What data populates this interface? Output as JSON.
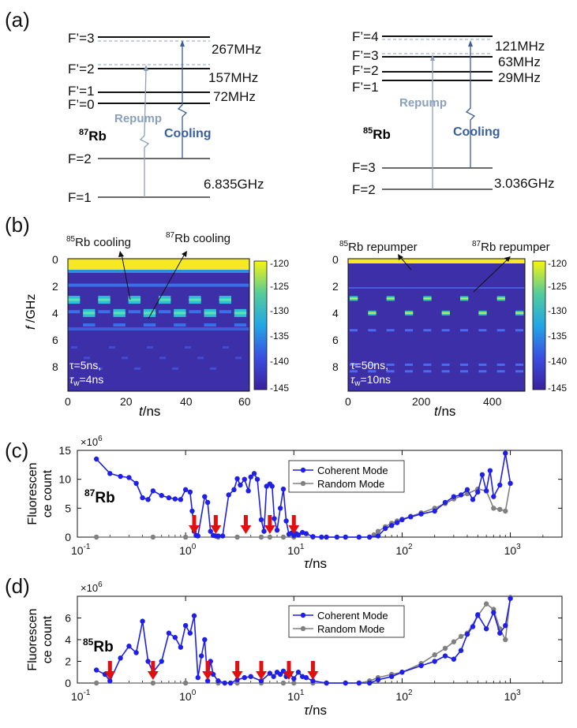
{
  "panel_a": {
    "letter": "(a)",
    "rb87": {
      "excited_levels": [
        "F’=3",
        "F’=2",
        "F’=1",
        "F’=0"
      ],
      "excited_splittings": [
        "267MHz",
        "157MHz",
        "72MHz"
      ],
      "ground_levels": [
        "F=2",
        "F=1"
      ],
      "ground_splitting": "6.835GHz",
      "isotope_mass": "87",
      "isotope_symbol": "Rb",
      "repump_label": "Repump",
      "cooling_label": "Cooling"
    },
    "rb85": {
      "excited_levels": [
        "F’=4",
        "F’=3",
        "F’=2",
        "F’=1"
      ],
      "excited_splittings": [
        "121MHz",
        "63MHz",
        "29MHz"
      ],
      "ground_levels": [
        "F=3",
        "F=2"
      ],
      "ground_splitting": "3.036GHz",
      "isotope_mass": "85",
      "isotope_symbol": "Rb",
      "repump_label": "Repump",
      "cooling_label": "Cooling"
    },
    "colors": {
      "repump": "#8aa0bb",
      "cooling": "#3a5f9a"
    }
  },
  "panel_b": {
    "letter": "(b)",
    "ylabel_var": "f",
    "ylabel_unit": " /GHz",
    "xlabel_var": "t",
    "xlabel_unit": "/ns",
    "left": {
      "anno1_mass": "85",
      "anno1_text": "Rb cooling",
      "anno2_mass": "87",
      "anno2_text": "Rb cooling",
      "param1": "τ=5ns,",
      "param2_sym": "τ",
      "param2_sub": "w",
      "param2_val": "=4ns",
      "x_ticks": [
        "0",
        "20",
        "40",
        "60"
      ]
    },
    "right": {
      "anno1_mass": "85",
      "anno1_text": "Rb repumper",
      "anno2_mass": "87",
      "anno2_text": "Rb repumper",
      "param1": "τ=50ns,",
      "param2_sym": "τ",
      "param2_sub": "w",
      "param2_val": "=10ns",
      "x_ticks": [
        "0",
        "200",
        "400"
      ]
    },
    "y_ticks": [
      "0",
      "2",
      "4",
      "6",
      "8"
    ],
    "colorbar_ticks": [
      "-120",
      "-125",
      "-130",
      "-135",
      "-140",
      "-145"
    ]
  },
  "chart_data": [
    {
      "type": "line",
      "panel": "(c)",
      "xscale": "log",
      "xlim": [
        0.1,
        3000
      ],
      "ylim": [
        0,
        15
      ],
      "ylabel_line1": "Fluorescen",
      "ylabel_line2": "ce count",
      "xlabel_var": "τ",
      "xlabel_unit": "/ns",
      "exponent_base": "×10",
      "exponent_power": "6",
      "isotope_mass": "87",
      "isotope_symbol": "Rb",
      "y_ticks": [
        "0",
        "5",
        "10",
        "15"
      ],
      "x_tick_labels": [
        [
          "10",
          "-1"
        ],
        [
          "10",
          "0"
        ],
        [
          "10",
          "1"
        ],
        [
          "10",
          "2"
        ],
        [
          "10",
          "3"
        ]
      ],
      "arrows_at": [
        1.2,
        1.9,
        3.6,
        6.0,
        10.0
      ],
      "series": [
        {
          "name": "Coherent Mode",
          "color": "#1f1fe6",
          "x": [
            0.15,
            0.2,
            0.25,
            0.3,
            0.35,
            0.4,
            0.45,
            0.5,
            0.6,
            0.7,
            0.8,
            0.9,
            1.0,
            1.1,
            1.15,
            1.2,
            1.25,
            1.3,
            1.5,
            1.6,
            1.7,
            1.8,
            1.9,
            2.0,
            2.2,
            2.5,
            2.8,
            3.0,
            3.2,
            3.5,
            3.8,
            4.0,
            4.3,
            4.6,
            5.0,
            5.3,
            5.6,
            6.0,
            6.3,
            6.6,
            7.0,
            7.5,
            8.0,
            8.5,
            9.0,
            9.5,
            10,
            10.5,
            11,
            12,
            13,
            15,
            18,
            20,
            25,
            30,
            40,
            50,
            60,
            70,
            80,
            90,
            100,
            120,
            150,
            200,
            250,
            300,
            350,
            400,
            450,
            500,
            550,
            600,
            650,
            700,
            800,
            900,
            1000
          ],
          "values": [
            13.5,
            11.0,
            10.5,
            10.3,
            9.3,
            6.8,
            6.5,
            8.0,
            7.2,
            6.8,
            6.6,
            6.5,
            8.2,
            7.8,
            4.5,
            1.0,
            0.3,
            0.2,
            7.0,
            6.0,
            1.0,
            0.3,
            0.2,
            0.2,
            0.2,
            7.3,
            8.2,
            10.1,
            9.0,
            10.0,
            8.0,
            10.4,
            11.0,
            10.0,
            3.0,
            1.0,
            8.8,
            9.2,
            8.8,
            3.2,
            1.2,
            5.0,
            8.3,
            2.8,
            0.5,
            0.7,
            0.3,
            0.6,
            0.4,
            0.8,
            0.6,
            0.1,
            0.0,
            0.0,
            0.0,
            0.0,
            0.0,
            0.0,
            0.2,
            1.5,
            2.0,
            2.5,
            3.0,
            3.5,
            4.0,
            4.5,
            6.0,
            7.0,
            7.3,
            8.2,
            6.5,
            7.8,
            10.8,
            8.0,
            11.5,
            7.0,
            9.0,
            14.5,
            9.3
          ]
        },
        {
          "name": "Random Mode",
          "color": "#808080",
          "x": [
            0.15,
            0.5,
            1.0,
            2.0,
            3.0,
            5.0,
            6.0,
            8.0,
            10,
            15,
            20,
            30,
            40,
            50,
            55,
            60,
            70,
            80,
            90,
            100,
            120,
            150,
            200,
            250,
            300,
            400,
            500,
            600,
            700,
            800,
            900,
            1000
          ],
          "values": [
            0.0,
            0.0,
            0.0,
            0.0,
            0.0,
            0.0,
            0.0,
            0.0,
            0.0,
            0.0,
            0.0,
            0.0,
            0.0,
            0.0,
            0.4,
            1.0,
            1.8,
            2.4,
            2.8,
            3.1,
            3.6,
            4.2,
            5.0,
            5.8,
            6.6,
            7.5,
            8.3,
            8.0,
            5.0,
            4.8,
            4.5,
            9.3
          ]
        }
      ]
    },
    {
      "type": "line",
      "panel": "(d)",
      "xscale": "log",
      "xlim": [
        0.1,
        3000
      ],
      "ylim": [
        0,
        8
      ],
      "ylabel_line1": "Fluorescen",
      "ylabel_line2": "ce count",
      "xlabel_var": "τ",
      "xlabel_unit": "/ns",
      "exponent_base": "×10",
      "exponent_power": "6",
      "isotope_mass": "85",
      "isotope_symbol": "Rb",
      "y_ticks": [
        "0",
        "2",
        "4",
        "6"
      ],
      "x_tick_labels": [
        [
          "10",
          "-1"
        ],
        [
          "10",
          "0"
        ],
        [
          "10",
          "1"
        ],
        [
          "10",
          "2"
        ],
        [
          "10",
          "3"
        ]
      ],
      "arrows_at": [
        0.2,
        0.5,
        1.6,
        3.0,
        5.0,
        9.0,
        15.0
      ],
      "series": [
        {
          "name": "Coherent Mode",
          "color": "#1f1fe6",
          "x": [
            0.15,
            0.18,
            0.2,
            0.25,
            0.3,
            0.35,
            0.4,
            0.45,
            0.5,
            0.6,
            0.7,
            0.8,
            0.9,
            1.0,
            1.1,
            1.2,
            1.3,
            1.4,
            1.5,
            1.6,
            1.7,
            1.8,
            2.0,
            2.3,
            2.6,
            3.0,
            3.5,
            4.0,
            5.0,
            6.0,
            6.5,
            7.0,
            7.5,
            8.0,
            8.5,
            9.0,
            10,
            11,
            12,
            13,
            15,
            20,
            30,
            40,
            50,
            60,
            80,
            100,
            150,
            200,
            250,
            300,
            350,
            400,
            450,
            500,
            600,
            700,
            800,
            900,
            1000
          ],
          "values": [
            1.2,
            0.8,
            0.2,
            2.3,
            3.4,
            2.8,
            5.7,
            2.0,
            1.0,
            2.0,
            4.6,
            4.2,
            3.3,
            5.3,
            4.6,
            6.2,
            0.5,
            2.5,
            4.0,
            0.2,
            2.0,
            0.8,
            0.2,
            0.0,
            0.0,
            0.3,
            0.5,
            0.6,
            0.2,
            0.9,
            0.6,
            1.0,
            0.8,
            1.1,
            0.6,
            1.0,
            0.4,
            1.0,
            0.6,
            0.5,
            0.2,
            0.0,
            0.0,
            0.0,
            0.0,
            0.3,
            0.6,
            1.0,
            1.6,
            2.0,
            2.5,
            2.2,
            3.0,
            4.5,
            5.2,
            6.3,
            5.0,
            6.5,
            4.6,
            5.3,
            7.8
          ]
        },
        {
          "name": "Random Mode",
          "color": "#808080",
          "x": [
            0.15,
            0.5,
            1.0,
            2.0,
            3.0,
            5.0,
            8.0,
            10,
            15,
            20,
            30,
            40,
            50,
            60,
            80,
            100,
            150,
            200,
            250,
            300,
            350,
            400,
            500,
            600,
            700,
            800,
            900,
            1000
          ],
          "values": [
            0.0,
            0.0,
            0.0,
            0.0,
            0.0,
            0.0,
            0.0,
            0.0,
            0.0,
            0.0,
            0.0,
            0.0,
            0.2,
            0.5,
            0.8,
            1.0,
            1.8,
            2.6,
            3.2,
            3.8,
            4.3,
            4.6,
            6.2,
            7.3,
            6.8,
            5.0,
            4.0,
            7.9
          ]
        }
      ]
    }
  ]
}
